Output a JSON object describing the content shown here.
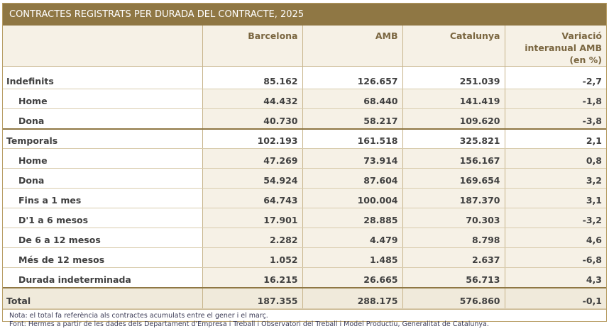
{
  "title": "CONTRACTES REGISTRATS PER DURADA DEL CONTRACTE, 2025",
  "columns": [
    "",
    "Barcelona",
    "AMB",
    "Catalunya",
    "Variació interanual AMB (en %)"
  ],
  "rows": [
    {
      "label": "Indefinits",
      "barcelona": "85.162",
      "amb": "126.657",
      "catalunya": "251.039",
      "variacio": "-2,7"
    },
    {
      "label": "Home",
      "barcelona": "44.432",
      "amb": "68.440",
      "catalunya": "141.419",
      "variacio": "-1,8"
    },
    {
      "label": "Dona",
      "barcelona": "40.730",
      "amb": "58.217",
      "catalunya": "109.620",
      "variacio": "-3,8"
    },
    {
      "label": "Temporals",
      "barcelona": "102.193",
      "amb": "161.518",
      "catalunya": "325.821",
      "variacio": "2,1"
    },
    {
      "label": "Home",
      "barcelona": "47.269",
      "amb": "73.914",
      "catalunya": "156.167",
      "variacio": "0,8"
    },
    {
      "label": "Dona",
      "barcelona": "54.924",
      "amb": "87.604",
      "catalunya": "169.654",
      "variacio": "3,2"
    },
    {
      "label": "Fins a 1 mes",
      "barcelona": "64.743",
      "amb": "100.004",
      "catalunya": "187.370",
      "variacio": "3,1"
    },
    {
      "label": "D'1 a 6 mesos",
      "barcelona": "17.901",
      "amb": "28.885",
      "catalunya": "70.303",
      "variacio": "-3,2"
    },
    {
      "label": "De 6 a 12 mesos",
      "barcelona": "2.282",
      "amb": "4.479",
      "catalunya": "8.798",
      "variacio": "4,6"
    },
    {
      "label": "Més de 12 mesos",
      "barcelona": "1.052",
      "amb": "1.485",
      "catalunya": "2.637",
      "variacio": "-6,8"
    },
    {
      "label": "Durada indeterminada",
      "barcelona": "16.215",
      "amb": "26.665",
      "catalunya": "56.713",
      "variacio": "4,3"
    },
    {
      "label": "Total",
      "barcelona": "187.355",
      "amb": "288.175",
      "catalunya": "576.860",
      "variacio": "-0,1"
    }
  ],
  "notes": {
    "nota": "Nota: el total fa referència als contractes acumulats entre el gener i el març.",
    "font": "Font: Hermes a partir de les dades dels Departament d'Empresa i Treball i Observatori del Treball i Model Productiu, Generalitat de Catalunya."
  }
}
